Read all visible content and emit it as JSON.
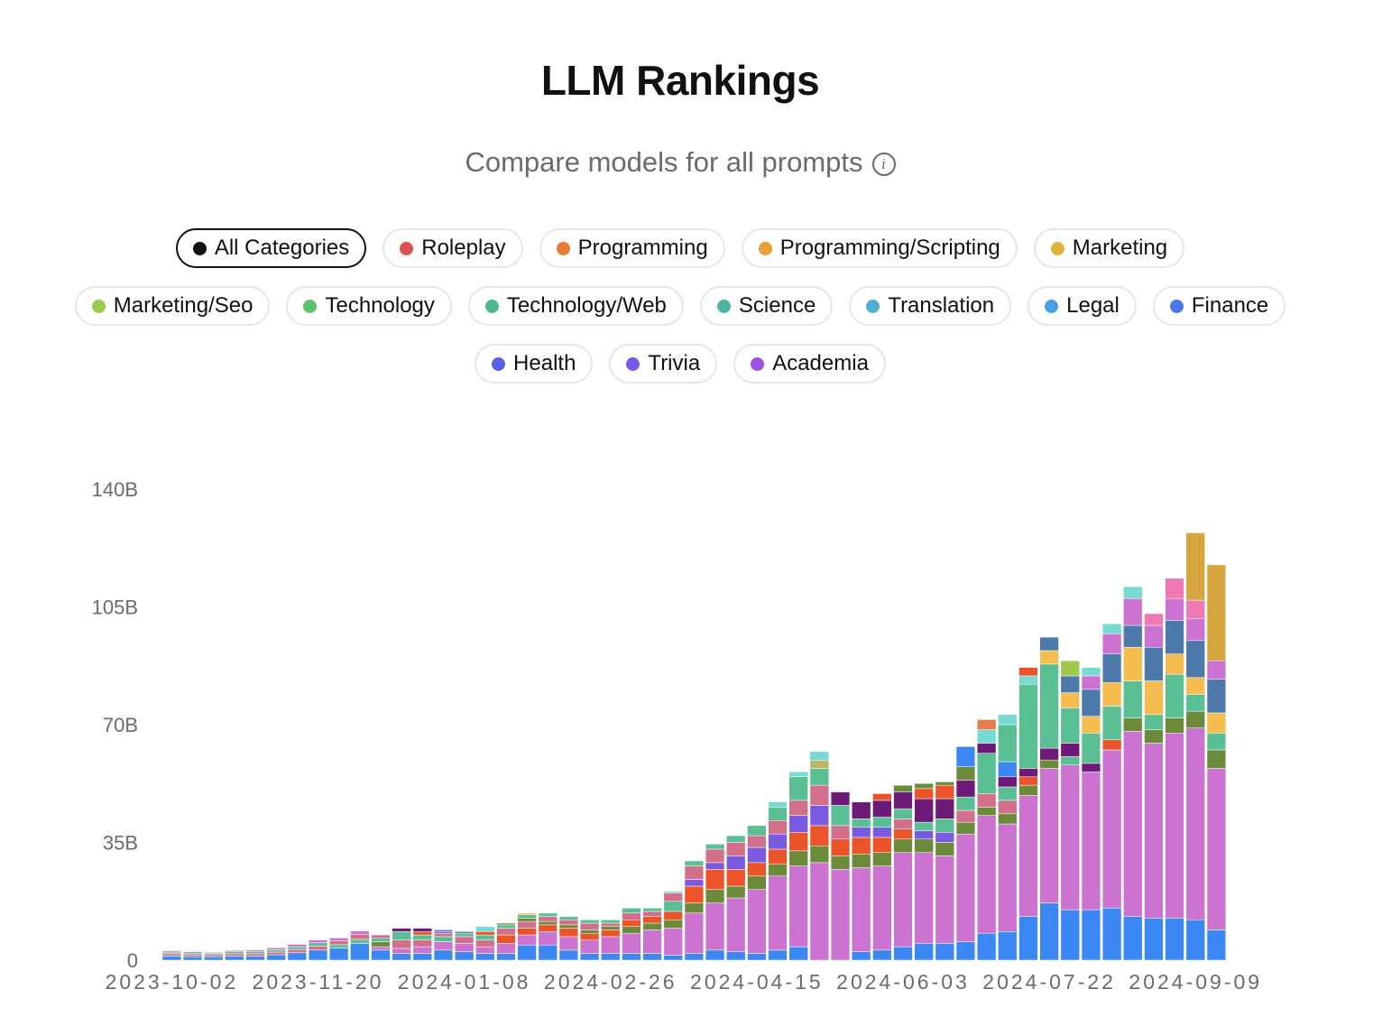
{
  "page": {
    "title": "LLM Rankings",
    "subtitle": "Compare models for all prompts",
    "info_icon": "info-icon"
  },
  "categories": [
    {
      "label": "All Categories",
      "color": "#111111",
      "active": true
    },
    {
      "label": "Roleplay",
      "color": "#e0504f"
    },
    {
      "label": "Programming",
      "color": "#ea7a36"
    },
    {
      "label": "Programming/Scripting",
      "color": "#e99f36"
    },
    {
      "label": "Marketing",
      "color": "#e0b43c"
    },
    {
      "label": "Marketing/Seo",
      "color": "#9dc94a"
    },
    {
      "label": "Technology",
      "color": "#5dc06c"
    },
    {
      "label": "Technology/Web",
      "color": "#4fb889"
    },
    {
      "label": "Science",
      "color": "#4fb5a3"
    },
    {
      "label": "Translation",
      "color": "#4db0d0"
    },
    {
      "label": "Legal",
      "color": "#47a0e8"
    },
    {
      "label": "Finance",
      "color": "#4a7ae9"
    },
    {
      "label": "Health",
      "color": "#5b5fe6"
    },
    {
      "label": "Trivia",
      "color": "#7a58e6"
    },
    {
      "label": "Academia",
      "color": "#9d52e0"
    }
  ],
  "chart_data": {
    "type": "bar",
    "stacked": true,
    "title": "",
    "xlabel": "",
    "ylabel": "",
    "ylim": [
      0,
      140
    ],
    "y_unit": "B",
    "y_ticks": [
      "0",
      "35B",
      "70B",
      "105B",
      "140B"
    ],
    "y_tick_values": [
      0,
      35,
      70,
      105,
      140
    ],
    "x_tick_labels": [
      "2023-10-02",
      "2023-11-20",
      "2024-01-08",
      "2024-02-26",
      "2024-04-15",
      "2024-06-03",
      "2024-07-22",
      "2024-09-09"
    ],
    "x_tick_every": 7,
    "series_colors": [
      "#3b88f5",
      "#cc73d1",
      "#6b8a3a",
      "#ea5428",
      "#7a5ae0",
      "#5ac093",
      "#d26f8a",
      "#6e1a78",
      "#4e79ab",
      "#f4bd4e",
      "#76dbd2",
      "#ef79b3",
      "#a1c84e",
      "#d6a53e",
      "#e47c4b",
      "#b9b86a"
    ],
    "stacks": [
      [
        [
          0,
          1.2
        ],
        [
          6,
          0.7
        ],
        [
          5,
          0.5
        ],
        [
          1,
          0.4
        ]
      ],
      [
        [
          0,
          1.0
        ],
        [
          6,
          0.6
        ],
        [
          5,
          0.5
        ],
        [
          1,
          0.4
        ]
      ],
      [
        [
          0,
          1.0
        ],
        [
          6,
          0.6
        ],
        [
          5,
          0.4
        ],
        [
          1,
          0.3
        ]
      ],
      [
        [
          0,
          1.2
        ],
        [
          6,
          0.7
        ],
        [
          5,
          0.6
        ],
        [
          1,
          0.4
        ]
      ],
      [
        [
          0,
          1.2
        ],
        [
          6,
          0.7
        ],
        [
          5,
          0.6
        ],
        [
          1,
          0.5
        ]
      ],
      [
        [
          0,
          1.6
        ],
        [
          6,
          0.8
        ],
        [
          5,
          0.7
        ],
        [
          1,
          0.6
        ]
      ],
      [
        [
          0,
          2.2
        ],
        [
          6,
          1.0
        ],
        [
          5,
          0.8
        ],
        [
          1,
          0.7
        ]
      ],
      [
        [
          0,
          3.0
        ],
        [
          6,
          1.2
        ],
        [
          5,
          1.0
        ],
        [
          1,
          0.8
        ]
      ],
      [
        [
          0,
          3.6
        ],
        [
          5,
          1.0
        ],
        [
          6,
          1.2
        ],
        [
          1,
          0.8
        ]
      ],
      [
        [
          0,
          5.0
        ],
        [
          5,
          1.2
        ],
        [
          6,
          1.5
        ],
        [
          1,
          1.0
        ]
      ],
      [
        [
          0,
          3.0
        ],
        [
          1,
          1.0
        ],
        [
          2,
          1.5
        ],
        [
          5,
          1.0
        ],
        [
          6,
          1.0
        ]
      ],
      [
        [
          0,
          2.0
        ],
        [
          1,
          1.5
        ],
        [
          6,
          2.5
        ],
        [
          5,
          2.5
        ],
        [
          7,
          1.0
        ]
      ],
      [
        [
          0,
          2.0
        ],
        [
          1,
          2.0
        ],
        [
          6,
          2.0
        ],
        [
          5,
          1.5
        ],
        [
          3,
          1.0
        ],
        [
          7,
          1.0
        ]
      ],
      [
        [
          0,
          3.0
        ],
        [
          1,
          2.5
        ],
        [
          5,
          1.5
        ],
        [
          6,
          1.0
        ],
        [
          4,
          0.5
        ],
        [
          8,
          0.5
        ]
      ],
      [
        [
          0,
          2.5
        ],
        [
          1,
          2.5
        ],
        [
          6,
          2.0
        ],
        [
          5,
          1.0
        ],
        [
          8,
          0.5
        ]
      ],
      [
        [
          0,
          2.0
        ],
        [
          1,
          2.0
        ],
        [
          6,
          2.0
        ],
        [
          5,
          1.5
        ],
        [
          3,
          1.0
        ],
        [
          10,
          1.5
        ]
      ],
      [
        [
          0,
          2.0
        ],
        [
          1,
          3.0
        ],
        [
          3,
          2.5
        ],
        [
          6,
          2.0
        ],
        [
          5,
          1.0
        ],
        [
          2,
          0.5
        ]
      ],
      [
        [
          0,
          4.5
        ],
        [
          1,
          3.0
        ],
        [
          3,
          2.0
        ],
        [
          6,
          2.0
        ],
        [
          2,
          1.0
        ],
        [
          5,
          1.0
        ],
        [
          9,
          0.5
        ]
      ],
      [
        [
          0,
          4.5
        ],
        [
          1,
          4.0
        ],
        [
          3,
          2.0
        ],
        [
          2,
          1.0
        ],
        [
          6,
          1.5
        ],
        [
          5,
          1.0
        ]
      ],
      [
        [
          0,
          3.0
        ],
        [
          1,
          4.0
        ],
        [
          3,
          2.5
        ],
        [
          2,
          1.0
        ],
        [
          6,
          1.5
        ],
        [
          5,
          1.0
        ]
      ],
      [
        [
          0,
          2.0
        ],
        [
          1,
          4.0
        ],
        [
          3,
          2.0
        ],
        [
          2,
          1.0
        ],
        [
          6,
          2.0
        ],
        [
          5,
          1.0
        ]
      ],
      [
        [
          0,
          2.0
        ],
        [
          1,
          5.0
        ],
        [
          3,
          2.0
        ],
        [
          2,
          1.0
        ],
        [
          6,
          1.0
        ],
        [
          5,
          1.0
        ]
      ],
      [
        [
          0,
          2.0
        ],
        [
          1,
          6.0
        ],
        [
          2,
          2.0
        ],
        [
          3,
          2.0
        ],
        [
          6,
          2.0
        ],
        [
          5,
          1.5
        ]
      ],
      [
        [
          0,
          2.0
        ],
        [
          1,
          7.0
        ],
        [
          2,
          2.0
        ],
        [
          3,
          2.0
        ],
        [
          6,
          1.5
        ],
        [
          5,
          1.0
        ]
      ],
      [
        [
          0,
          1.5
        ],
        [
          1,
          8.0
        ],
        [
          2,
          2.5
        ],
        [
          3,
          2.5
        ],
        [
          5,
          3.0
        ],
        [
          6,
          2.5
        ],
        [
          10,
          0.5
        ]
      ],
      [
        [
          0,
          2.0
        ],
        [
          1,
          12.0
        ],
        [
          2,
          3.0
        ],
        [
          3,
          5.0
        ],
        [
          4,
          2.0
        ],
        [
          6,
          4.0
        ],
        [
          5,
          1.5
        ]
      ],
      [
        [
          0,
          3.0
        ],
        [
          1,
          14.0
        ],
        [
          2,
          4.0
        ],
        [
          3,
          6.0
        ],
        [
          4,
          2.0
        ],
        [
          6,
          4.0
        ],
        [
          5,
          1.5
        ]
      ],
      [
        [
          0,
          2.5
        ],
        [
          1,
          16.0
        ],
        [
          2,
          3.5
        ],
        [
          3,
          5.0
        ],
        [
          4,
          4.0
        ],
        [
          6,
          4.0
        ],
        [
          5,
          2.0
        ]
      ],
      [
        [
          0,
          2.0
        ],
        [
          1,
          19.0
        ],
        [
          2,
          4.0
        ],
        [
          3,
          4.0
        ],
        [
          4,
          4.5
        ],
        [
          6,
          3.5
        ],
        [
          5,
          3.0
        ]
      ],
      [
        [
          0,
          3.0
        ],
        [
          1,
          22.0
        ],
        [
          2,
          3.5
        ],
        [
          3,
          4.5
        ],
        [
          4,
          4.5
        ],
        [
          6,
          4.0
        ],
        [
          5,
          4.0
        ],
        [
          10,
          1.5
        ]
      ],
      [
        [
          0,
          4.0
        ],
        [
          1,
          24.0
        ],
        [
          2,
          4.5
        ],
        [
          3,
          5.5
        ],
        [
          4,
          5.0
        ],
        [
          6,
          4.5
        ],
        [
          5,
          7.0
        ],
        [
          10,
          1.5
        ]
      ],
      [
        [
          1,
          29.0
        ],
        [
          2,
          5.0
        ],
        [
          3,
          6.0
        ],
        [
          4,
          6.0
        ],
        [
          6,
          6.0
        ],
        [
          5,
          5.0
        ],
        [
          15,
          2.5
        ],
        [
          10,
          2.5
        ]
      ],
      [
        [
          1,
          27.0
        ],
        [
          2,
          4.0
        ],
        [
          3,
          5.0
        ],
        [
          6,
          4.0
        ],
        [
          5,
          6.0
        ],
        [
          7,
          4.0
        ]
      ],
      [
        [
          0,
          2.5
        ],
        [
          1,
          25.0
        ],
        [
          2,
          4.0
        ],
        [
          3,
          5.0
        ],
        [
          4,
          3.0
        ],
        [
          5,
          2.5
        ],
        [
          7,
          5.0
        ]
      ],
      [
        [
          0,
          3.0
        ],
        [
          1,
          25.0
        ],
        [
          2,
          4.0
        ],
        [
          3,
          4.5
        ],
        [
          4,
          3.0
        ],
        [
          5,
          3.0
        ],
        [
          7,
          5.0
        ],
        [
          3,
          2.0
        ]
      ],
      [
        [
          0,
          4.0
        ],
        [
          1,
          28.0
        ],
        [
          2,
          4.0
        ],
        [
          3,
          3.0
        ],
        [
          6,
          3.0
        ],
        [
          5,
          3.0
        ],
        [
          7,
          5.0
        ],
        [
          2,
          2.0
        ]
      ],
      [
        [
          0,
          5.0
        ],
        [
          1,
          27.0
        ],
        [
          2,
          4.0
        ],
        [
          4,
          2.5
        ],
        [
          5,
          2.5
        ],
        [
          7,
          7.0
        ],
        [
          3,
          3.0
        ],
        [
          2,
          1.5
        ]
      ],
      [
        [
          0,
          5.0
        ],
        [
          1,
          26.0
        ],
        [
          2,
          4.0
        ],
        [
          4,
          3.0
        ],
        [
          5,
          4.0
        ],
        [
          7,
          6.0
        ],
        [
          3,
          4.0
        ],
        [
          2,
          1.0
        ]
      ],
      [
        [
          0,
          5.5
        ],
        [
          1,
          32.0
        ],
        [
          2,
          3.5
        ],
        [
          6,
          3.5
        ],
        [
          5,
          4.0
        ],
        [
          7,
          5.0
        ],
        [
          2,
          4.0
        ],
        [
          0,
          6.0
        ]
      ],
      [
        [
          0,
          8.0
        ],
        [
          1,
          35.0
        ],
        [
          2,
          2.5
        ],
        [
          6,
          4.0
        ],
        [
          5,
          12.0
        ],
        [
          7,
          3.0
        ],
        [
          10,
          4.0
        ],
        [
          14,
          3.0
        ]
      ],
      [
        [
          0,
          8.5
        ],
        [
          1,
          32.0
        ],
        [
          2,
          3.0
        ],
        [
          6,
          4.0
        ],
        [
          5,
          4.0
        ],
        [
          7,
          3.0
        ],
        [
          0,
          4.5
        ],
        [
          5,
          11.0
        ],
        [
          10,
          3.0
        ]
      ],
      [
        [
          0,
          13.0
        ],
        [
          1,
          36.0
        ],
        [
          2,
          3.0
        ],
        [
          3,
          2.5
        ],
        [
          7,
          2.5
        ],
        [
          5,
          25.0
        ],
        [
          10,
          2.5
        ],
        [
          3,
          2.5
        ]
      ],
      [
        [
          0,
          17.0
        ],
        [
          1,
          40.0
        ],
        [
          2,
          2.5
        ],
        [
          7,
          3.5
        ],
        [
          5,
          25.0
        ],
        [
          9,
          4.0
        ],
        [
          8,
          4.0
        ]
      ],
      [
        [
          0,
          15.0
        ],
        [
          1,
          43.0
        ],
        [
          5,
          2.5
        ],
        [
          7,
          4.0
        ],
        [
          5,
          10.5
        ],
        [
          9,
          4.5
        ],
        [
          8,
          5.0
        ],
        [
          12,
          4.5
        ]
      ],
      [
        [
          0,
          15.0
        ],
        [
          1,
          41.0
        ],
        [
          7,
          2.5
        ],
        [
          5,
          9.0
        ],
        [
          9,
          5.0
        ],
        [
          8,
          8.0
        ],
        [
          1,
          4.0
        ],
        [
          10,
          2.5
        ]
      ],
      [
        [
          0,
          15.5
        ],
        [
          1,
          47.0
        ],
        [
          3,
          3.0
        ],
        [
          5,
          10.0
        ],
        [
          9,
          7.0
        ],
        [
          8,
          8.5
        ],
        [
          1,
          6.0
        ],
        [
          10,
          3.0
        ]
      ],
      [
        [
          0,
          13.0
        ],
        [
          1,
          55.0
        ],
        [
          2,
          4.0
        ],
        [
          5,
          11.0
        ],
        [
          9,
          10.0
        ],
        [
          8,
          6.5
        ],
        [
          1,
          8.0
        ],
        [
          10,
          3.5
        ]
      ],
      [
        [
          0,
          12.5
        ],
        [
          1,
          52.0
        ],
        [
          2,
          4.0
        ],
        [
          5,
          4.5
        ],
        [
          9,
          10.0
        ],
        [
          8,
          10.0
        ],
        [
          1,
          6.5
        ],
        [
          11,
          3.5
        ]
      ],
      [
        [
          0,
          12.5
        ],
        [
          1,
          55.0
        ],
        [
          2,
          4.5
        ],
        [
          5,
          13.0
        ],
        [
          9,
          6.0
        ],
        [
          8,
          10.0
        ],
        [
          1,
          6.5
        ],
        [
          11,
          6.0
        ]
      ],
      [
        [
          0,
          12.0
        ],
        [
          1,
          57.0
        ],
        [
          2,
          5.0
        ],
        [
          5,
          5.0
        ],
        [
          9,
          5.0
        ],
        [
          8,
          11.0
        ],
        [
          1,
          6.5
        ],
        [
          11,
          5.5
        ],
        [
          13,
          20.0
        ]
      ],
      [
        [
          0,
          9.0
        ],
        [
          1,
          48.0
        ],
        [
          2,
          5.5
        ],
        [
          5,
          5.0
        ],
        [
          9,
          6.0
        ],
        [
          8,
          10.0
        ],
        [
          1,
          5.5
        ],
        [
          13,
          28.5
        ]
      ]
    ]
  }
}
